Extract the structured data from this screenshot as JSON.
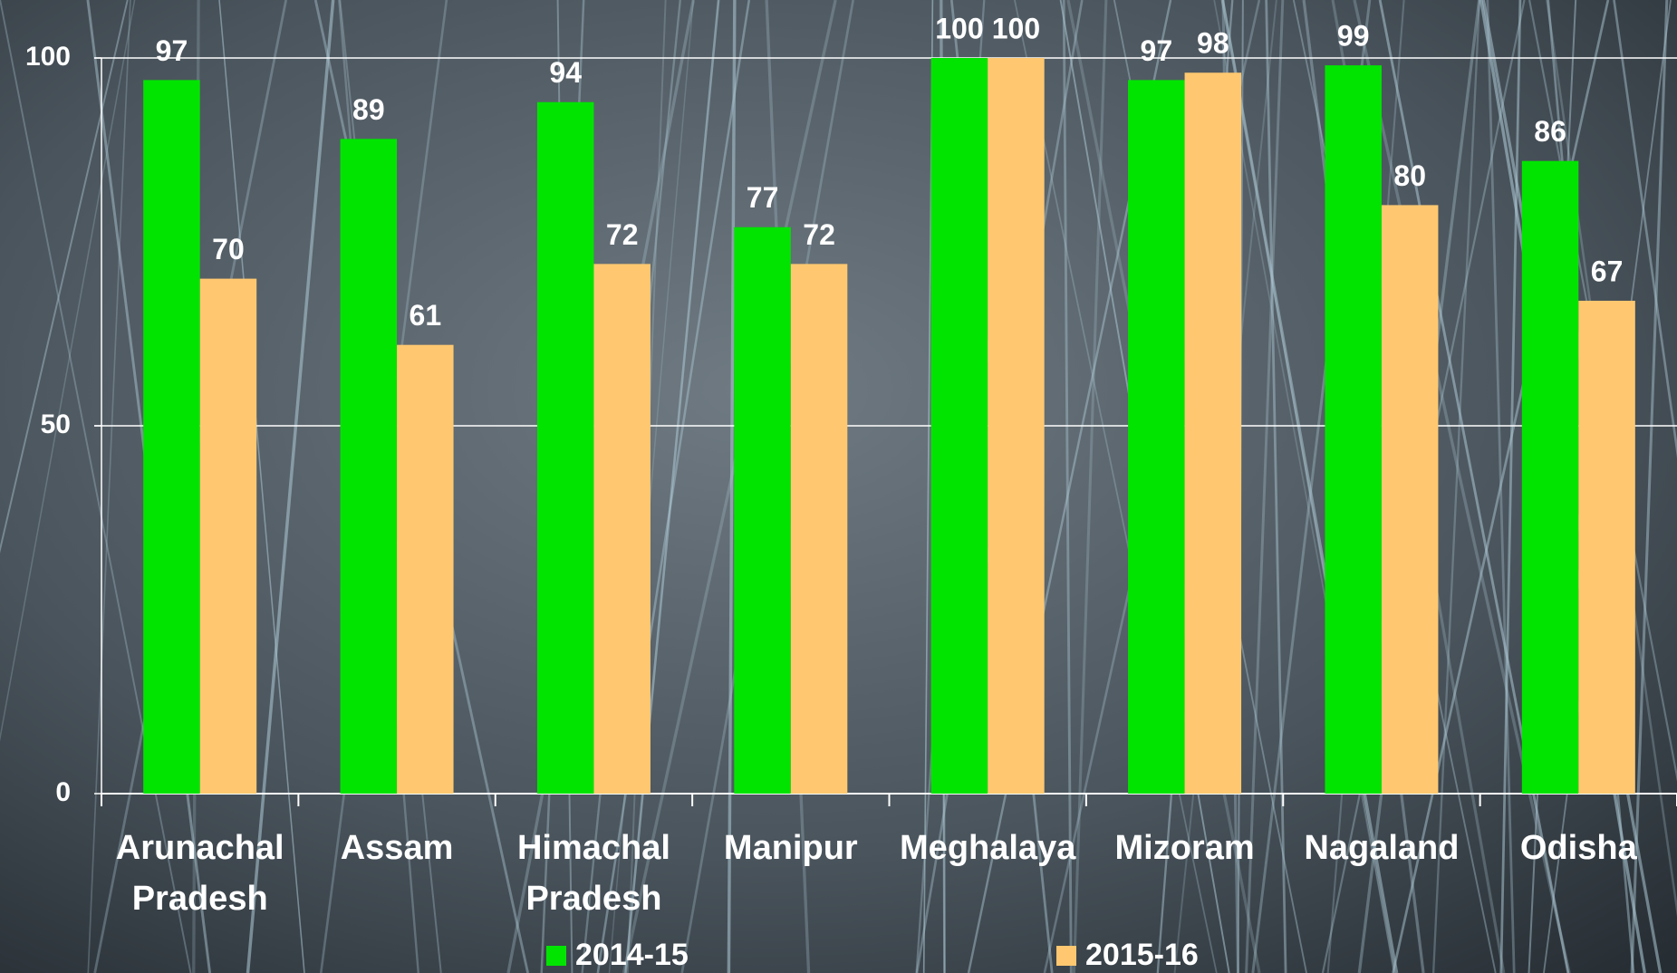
{
  "chart_data": {
    "type": "bar",
    "categories": [
      "Arunachal Pradesh",
      "Assam",
      "Himachal Pradesh",
      "Manipur",
      "Meghalaya",
      "Mizoram",
      "Nagaland",
      "Odisha"
    ],
    "series": [
      {
        "name": "2014-15",
        "color": "#00e400",
        "values": [
          97,
          89,
          94,
          77,
          100,
          97,
          99,
          86
        ]
      },
      {
        "name": "2015-16",
        "color": "#ffc870",
        "values": [
          70,
          61,
          72,
          72,
          100,
          98,
          80,
          67
        ]
      }
    ],
    "ylim": [
      0,
      100
    ],
    "yticks": [
      0,
      50,
      100
    ],
    "grid": true,
    "legend": "bottom"
  }
}
